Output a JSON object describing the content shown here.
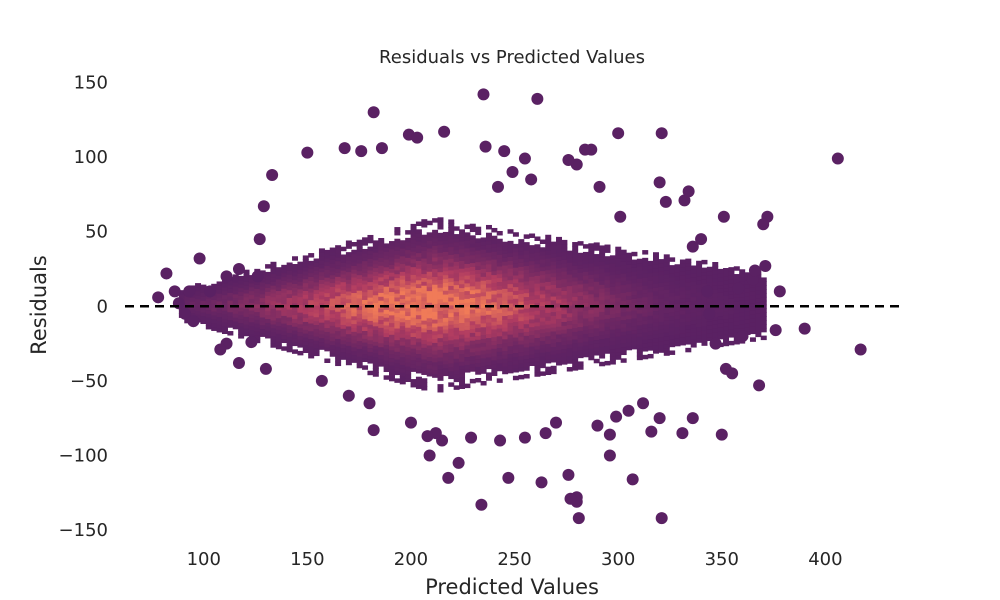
{
  "chart_data": {
    "type": "scatter",
    "title": "Residuals vs Predicted Values",
    "xlabel": "Predicted Values",
    "ylabel": "Residuals",
    "xlim": [
      62,
      436
    ],
    "ylim": [
      -160,
      155
    ],
    "x_ticks": [
      100,
      150,
      200,
      250,
      300,
      350,
      400
    ],
    "y_ticks": [
      150,
      100,
      50,
      0,
      -50,
      -100,
      -150
    ],
    "grid": false,
    "reference_line": {
      "y": 0,
      "style": "dashed",
      "color": "#000000"
    },
    "colors": {
      "point": "#5a2163",
      "density_low": "#5a2163",
      "density_mid": "#b13c61",
      "density_high": "#f07b58"
    },
    "points": [
      [
        406,
        99
      ],
      [
        417,
        -29
      ],
      [
        390,
        -15
      ],
      [
        378,
        10
      ],
      [
        376,
        -16
      ],
      [
        372,
        60
      ],
      [
        368,
        -53
      ],
      [
        365,
        18
      ],
      [
        351,
        60
      ],
      [
        350,
        -86
      ],
      [
        352,
        -42
      ],
      [
        355,
        -45
      ],
      [
        360,
        -20
      ],
      [
        336,
        40
      ],
      [
        340,
        45
      ],
      [
        321,
        116
      ],
      [
        320,
        83
      ],
      [
        316,
        -84
      ],
      [
        300,
        116
      ],
      [
        323,
        70
      ],
      [
        332,
        71
      ],
      [
        334,
        77
      ],
      [
        307,
        -116
      ],
      [
        296,
        -100
      ],
      [
        312,
        -65
      ],
      [
        331,
        -85
      ],
      [
        336,
        -75
      ],
      [
        320,
        -75
      ],
      [
        305,
        -70
      ],
      [
        301,
        60
      ],
      [
        291,
        80
      ],
      [
        287,
        105
      ],
      [
        284,
        105
      ],
      [
        280,
        95
      ],
      [
        276,
        98
      ],
      [
        321,
        -142
      ],
      [
        280,
        -131
      ],
      [
        281,
        -142
      ],
      [
        280,
        -128
      ],
      [
        276,
        -113
      ],
      [
        277,
        -129
      ],
      [
        263,
        -118
      ],
      [
        261,
        139
      ],
      [
        235,
        142
      ],
      [
        247,
        -115
      ],
      [
        234,
        -133
      ],
      [
        223,
        -105
      ],
      [
        218,
        -115
      ],
      [
        215,
        -90
      ],
      [
        209,
        -100
      ],
      [
        212,
        -85
      ],
      [
        182,
        130
      ],
      [
        186,
        106
      ],
      [
        168,
        106
      ],
      [
        176,
        104
      ],
      [
        199,
        115
      ],
      [
        203,
        113
      ],
      [
        216,
        117
      ],
      [
        236,
        107
      ],
      [
        245,
        104
      ],
      [
        255,
        99
      ],
      [
        258,
        85
      ],
      [
        249,
        90
      ],
      [
        242,
        80
      ],
      [
        150,
        103
      ],
      [
        133,
        88
      ],
      [
        129,
        67
      ],
      [
        127,
        45
      ],
      [
        126,
        20
      ],
      [
        117,
        25
      ],
      [
        111,
        20
      ],
      [
        103,
        10
      ],
      [
        98,
        32
      ],
      [
        93,
        10
      ],
      [
        86,
        10
      ],
      [
        82,
        22
      ],
      [
        78,
        6
      ],
      [
        88,
        2
      ],
      [
        91,
        -5
      ],
      [
        95,
        -10
      ],
      [
        111,
        -25
      ],
      [
        108,
        -29
      ],
      [
        117,
        -38
      ],
      [
        123,
        -24
      ],
      [
        130,
        -42
      ],
      [
        157,
        -50
      ],
      [
        170,
        -60
      ],
      [
        180,
        -65
      ],
      [
        182,
        -83
      ],
      [
        200,
        -78
      ],
      [
        208,
        -87
      ],
      [
        229,
        -88
      ],
      [
        243,
        -90
      ],
      [
        255,
        -88
      ],
      [
        265,
        -85
      ],
      [
        270,
        -78
      ],
      [
        290,
        -80
      ],
      [
        296,
        -86
      ],
      [
        299,
        -74
      ],
      [
        343,
        10
      ],
      [
        344,
        -5
      ],
      [
        347,
        -25
      ],
      [
        371,
        27
      ],
      [
        358,
        12
      ],
      [
        366,
        24
      ],
      [
        370,
        55
      ]
    ]
  }
}
